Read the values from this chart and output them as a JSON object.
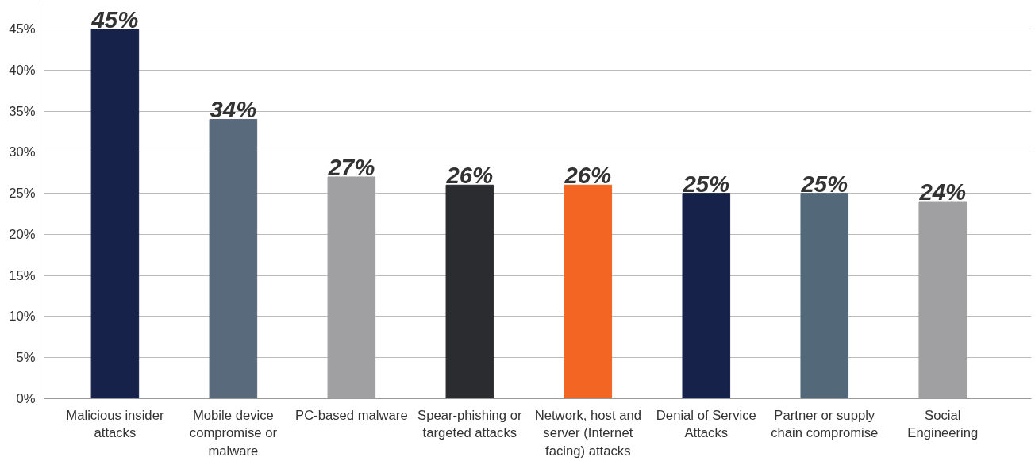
{
  "chart_data": {
    "type": "bar",
    "categories": [
      "Malicious insider attacks",
      "Mobile device compromise or malware",
      "PC-based malware",
      "Spear-phishing or targeted attacks",
      "Network, host and server (Internet facing) attacks",
      "Denial of Service Attacks",
      "Partner or supply chain compromise",
      "Social Engineering"
    ],
    "values": [
      45,
      34,
      27,
      26,
      26,
      25,
      25,
      24
    ],
    "colors": [
      "#16224a",
      "#586a7c",
      "#a0a0a2",
      "#2b2c30",
      "#f26522",
      "#16224a",
      "#536879",
      "#a0a0a2"
    ],
    "value_labels": [
      "45%",
      "34%",
      "27%",
      "26%",
      "26%",
      "25%",
      "25%",
      "24%"
    ],
    "ylim": [
      0,
      48
    ],
    "yticks": [
      {
        "value": 0,
        "label": "0%"
      },
      {
        "value": 5,
        "label": "5%"
      },
      {
        "value": 10,
        "label": "10%"
      },
      {
        "value": 15,
        "label": "15%"
      },
      {
        "value": 20,
        "label": "20%"
      },
      {
        "value": 25,
        "label": "25%"
      },
      {
        "value": 30,
        "label": "30%"
      },
      {
        "value": 35,
        "label": "35%"
      },
      {
        "value": 40,
        "label": "40%"
      },
      {
        "value": 45,
        "label": "45%"
      }
    ],
    "grid": "y"
  }
}
